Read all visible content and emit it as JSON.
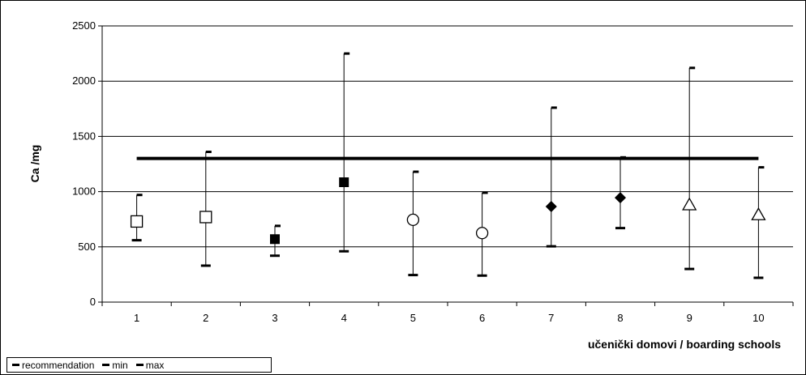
{
  "chart_data": {
    "type": "scatter",
    "title": "",
    "ylabel": "Ca /mg",
    "xlabel": "učenički domovi / boarding schools",
    "ylim": [
      0,
      2500
    ],
    "yticks": [
      0,
      500,
      1000,
      1500,
      2000,
      2500
    ],
    "categories": [
      "1",
      "2",
      "3",
      "4",
      "5",
      "6",
      "7",
      "8",
      "9",
      "10"
    ],
    "recommendation": 1300,
    "series": [
      {
        "name": "min",
        "values": [
          560,
          330,
          420,
          460,
          245,
          240,
          505,
          670,
          300,
          220
        ]
      },
      {
        "name": "max",
        "values": [
          970,
          1360,
          690,
          2250,
          1180,
          990,
          1760,
          1310,
          2120,
          1220
        ]
      }
    ],
    "means": [
      {
        "value": 730,
        "marker": "square-open"
      },
      {
        "value": 770,
        "marker": "square-open"
      },
      {
        "value": 570,
        "marker": "square-filled"
      },
      {
        "value": 1085,
        "marker": "square-filled"
      },
      {
        "value": 745,
        "marker": "circle-open"
      },
      {
        "value": 625,
        "marker": "circle-open"
      },
      {
        "value": 865,
        "marker": "diamond-filled"
      },
      {
        "value": 945,
        "marker": "diamond-filled"
      },
      {
        "value": 880,
        "marker": "triangle-open"
      },
      {
        "value": 790,
        "marker": "triangle-open"
      }
    ],
    "grid": true,
    "legend_position": "bottom-left"
  },
  "legend": {
    "recommendation": "recommendation",
    "min": "min",
    "max": "max"
  }
}
